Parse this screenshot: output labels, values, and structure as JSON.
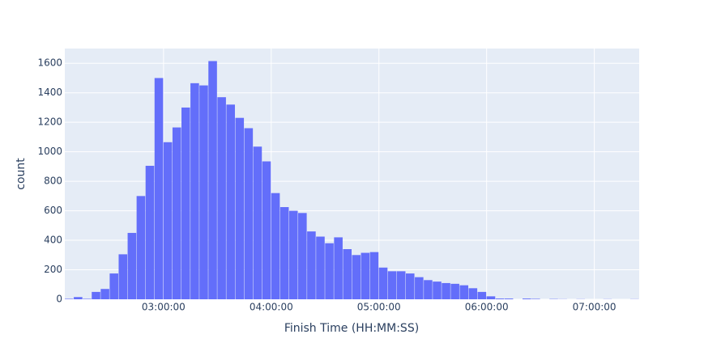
{
  "chart_data": {
    "type": "histogram",
    "xlabel": "Finish Time (HH:MM:SS)",
    "ylabel": "count",
    "bins": [
      7500,
      7800,
      8100,
      8400,
      8700,
      9000,
      9300,
      9600,
      9900,
      10200,
      10500,
      10800,
      11100,
      11400,
      11700,
      12000,
      12300,
      12600,
      12900,
      13200,
      13500,
      13800,
      14100,
      14400,
      14700,
      15000,
      15300,
      15600,
      15900,
      16200,
      16500,
      16800,
      17100,
      17400,
      17700,
      18000,
      18300,
      18600,
      18900,
      19200,
      19500,
      19800,
      20100,
      20400,
      20700,
      21000,
      21300,
      21600,
      21900,
      22200,
      22500,
      22800,
      23100,
      23400,
      23700,
      24000,
      24300,
      24600,
      24900,
      25200,
      25500,
      25800,
      26100,
      26400,
      26700
    ],
    "values": [
      3,
      15,
      3,
      50,
      70,
      175,
      305,
      450,
      700,
      905,
      1500,
      1065,
      1165,
      1300,
      1465,
      1450,
      1615,
      1370,
      1320,
      1230,
      1160,
      1035,
      935,
      720,
      625,
      600,
      585,
      460,
      425,
      380,
      420,
      340,
      300,
      315,
      320,
      215,
      190,
      190,
      175,
      150,
      130,
      120,
      110,
      105,
      95,
      75,
      50,
      20,
      5,
      5,
      0,
      5,
      3,
      0,
      2,
      1,
      0,
      1,
      0,
      0,
      1,
      0,
      0,
      1
    ],
    "color": "#636efa",
    "xlim": [
      7500,
      26700
    ],
    "xticks": [
      {
        "value": 10800,
        "label": "03:00:00"
      },
      {
        "value": 14400,
        "label": "04:00:00"
      },
      {
        "value": 18000,
        "label": "05:00:00"
      },
      {
        "value": 21600,
        "label": "06:00:00"
      },
      {
        "value": 25200,
        "label": "07:00:00"
      }
    ],
    "ylim": [
      0,
      1700
    ],
    "yticks": [
      0,
      200,
      400,
      600,
      800,
      1000,
      1200,
      1400,
      1600
    ],
    "grid": true
  }
}
